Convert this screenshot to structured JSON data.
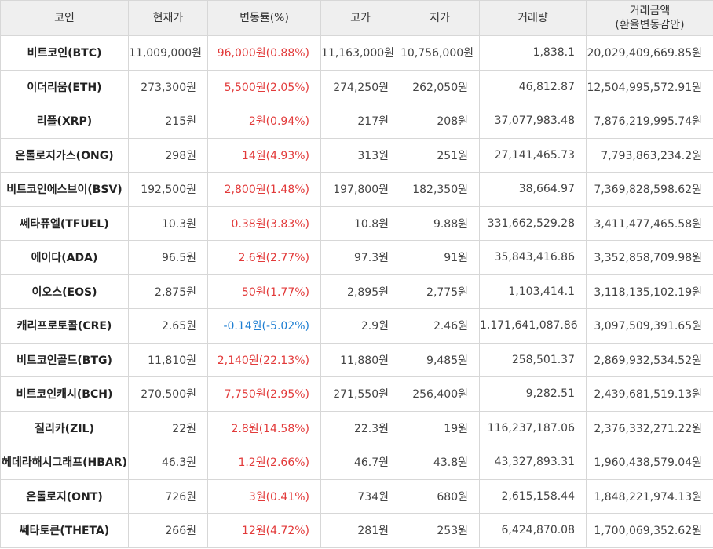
{
  "headers": [
    "코인",
    "현재가",
    "변동률(%)",
    "고가",
    "저가",
    "거래량",
    "거래금액\n(환율변동감안)"
  ],
  "rows": [
    {
      "name": "비트코인(BTC)",
      "price": "11,009,000원",
      "change": "96,000원(0.88%)",
      "dir": "up",
      "high": "11,163,000원",
      "low": "10,756,000원",
      "volume": "1,838.1",
      "amount": "20,029,409,669.85원"
    },
    {
      "name": "이더리움(ETH)",
      "price": "273,300원",
      "change": "5,500원(2.05%)",
      "dir": "up",
      "high": "274,250원",
      "low": "262,050원",
      "volume": "46,812.87",
      "amount": "12,504,995,572.91원"
    },
    {
      "name": "리플(XRP)",
      "price": "215원",
      "change": "2원(0.94%)",
      "dir": "up",
      "high": "217원",
      "low": "208원",
      "volume": "37,077,983.48",
      "amount": "7,876,219,995.74원"
    },
    {
      "name": "온톨로지가스(ONG)",
      "price": "298원",
      "change": "14원(4.93%)",
      "dir": "up",
      "high": "313원",
      "low": "251원",
      "volume": "27,141,465.73",
      "amount": "7,793,863,234.2원"
    },
    {
      "name": "비트코인에스브이(BSV)",
      "price": "192,500원",
      "change": "2,800원(1.48%)",
      "dir": "up",
      "high": "197,800원",
      "low": "182,350원",
      "volume": "38,664.97",
      "amount": "7,369,828,598.62원"
    },
    {
      "name": "쎄타퓨엘(TFUEL)",
      "price": "10.3원",
      "change": "0.38원(3.83%)",
      "dir": "up",
      "high": "10.8원",
      "low": "9.88원",
      "volume": "331,662,529.28",
      "amount": "3,411,477,465.58원"
    },
    {
      "name": "에이다(ADA)",
      "price": "96.5원",
      "change": "2.6원(2.77%)",
      "dir": "up",
      "high": "97.3원",
      "low": "91원",
      "volume": "35,843,416.86",
      "amount": "3,352,858,709.98원"
    },
    {
      "name": "이오스(EOS)",
      "price": "2,875원",
      "change": "50원(1.77%)",
      "dir": "up",
      "high": "2,895원",
      "low": "2,775원",
      "volume": "1,103,414.1",
      "amount": "3,118,135,102.19원"
    },
    {
      "name": "캐리프로토콜(CRE)",
      "price": "2.65원",
      "change": "-0.14원(-5.02%)",
      "dir": "down",
      "high": "2.9원",
      "low": "2.46원",
      "volume": "1,171,641,087.86",
      "amount": "3,097,509,391.65원"
    },
    {
      "name": "비트코인골드(BTG)",
      "price": "11,810원",
      "change": "2,140원(22.13%)",
      "dir": "up",
      "high": "11,880원",
      "low": "9,485원",
      "volume": "258,501.37",
      "amount": "2,869,932,534.52원"
    },
    {
      "name": "비트코인캐시(BCH)",
      "price": "270,500원",
      "change": "7,750원(2.95%)",
      "dir": "up",
      "high": "271,550원",
      "low": "256,400원",
      "volume": "9,282.51",
      "amount": "2,439,681,519.13원"
    },
    {
      "name": "질리카(ZIL)",
      "price": "22원",
      "change": "2.8원(14.58%)",
      "dir": "up",
      "high": "22.3원",
      "low": "19원",
      "volume": "116,237,187.06",
      "amount": "2,376,332,271.22원"
    },
    {
      "name": "헤데라해시그래프(HBAR)",
      "price": "46.3원",
      "change": "1.2원(2.66%)",
      "dir": "up",
      "high": "46.7원",
      "low": "43.8원",
      "volume": "43,327,893.31",
      "amount": "1,960,438,579.04원"
    },
    {
      "name": "온톨로지(ONT)",
      "price": "726원",
      "change": "3원(0.41%)",
      "dir": "up",
      "high": "734원",
      "low": "680원",
      "volume": "2,615,158.44",
      "amount": "1,848,221,974.13원"
    },
    {
      "name": "쎄타토큰(THETA)",
      "price": "266원",
      "change": "12원(4.72%)",
      "dir": "up",
      "high": "281원",
      "low": "253원",
      "volume": "6,424,870.08",
      "amount": "1,700,069,352.62원"
    }
  ],
  "colors": {
    "up": "#e23a3a",
    "down": "#1d7ed2",
    "header_bg": "#efefef",
    "border": "#d7d7d7"
  }
}
